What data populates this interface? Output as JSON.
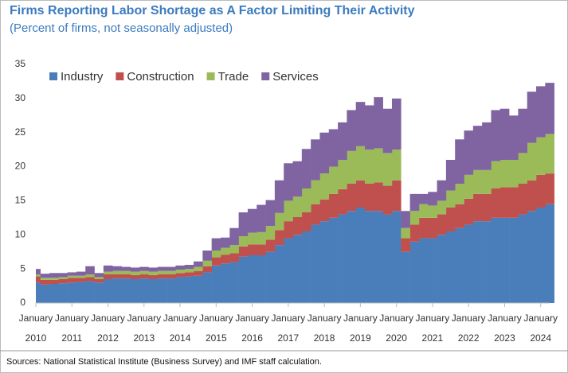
{
  "chart_data": {
    "type": "bar",
    "stacked": true,
    "title": "Firms Reporting Labor Shortage as A Factor Limiting Their Activity",
    "subtitle": "(Percent of firms, not seasonally adjusted)",
    "source": "Sources: National Statistical Institute (Business Survey) and IMF staff calculation.",
    "x_tick_month": "January",
    "categories": [
      "2010",
      null,
      null,
      null,
      "2011",
      null,
      null,
      null,
      "2012",
      null,
      null,
      null,
      "2013",
      null,
      null,
      null,
      "2014",
      null,
      null,
      null,
      "2015",
      null,
      null,
      null,
      "2016",
      null,
      null,
      null,
      "2017",
      null,
      null,
      null,
      "2018",
      null,
      null,
      null,
      "2019",
      null,
      null,
      null,
      "2020",
      null,
      null,
      null,
      "2021",
      null,
      null,
      null,
      "2022",
      null,
      null,
      null,
      "2023",
      null,
      null,
      null,
      "2024",
      null
    ],
    "ylim": [
      0,
      35
    ],
    "yticks": [
      0,
      5,
      10,
      15,
      20,
      25,
      30,
      35
    ],
    "grid": false,
    "legend": "top-left",
    "series": [
      {
        "name": "Industry",
        "color": "#4a7ebb",
        "values": [
          3.0,
          2.7,
          2.8,
          2.9,
          3.0,
          3.1,
          3.2,
          3.0,
          3.5,
          3.6,
          3.6,
          3.5,
          3.6,
          3.5,
          3.6,
          3.6,
          3.8,
          3.9,
          4.0,
          4.5,
          5.5,
          5.8,
          6.0,
          6.8,
          7.0,
          7.0,
          7.5,
          8.5,
          9.5,
          10.0,
          10.5,
          11.5,
          12.0,
          12.5,
          13.0,
          13.5,
          14.0,
          13.5,
          13.5,
          13.0,
          13.5,
          7.5,
          9.0,
          9.5,
          9.5,
          10.0,
          10.5,
          11.0,
          11.5,
          12.0,
          12.0,
          12.5,
          12.5,
          12.5,
          13.0,
          13.5,
          14.0,
          14.5
        ]
      },
      {
        "name": "Construction",
        "color": "#c0504d",
        "values": [
          0.9,
          0.7,
          0.6,
          0.6,
          0.7,
          0.6,
          0.6,
          0.5,
          0.7,
          0.6,
          0.6,
          0.6,
          0.6,
          0.6,
          0.6,
          0.6,
          0.6,
          0.6,
          0.7,
          0.9,
          1.2,
          1.3,
          1.3,
          1.5,
          1.6,
          1.6,
          1.8,
          2.2,
          2.5,
          2.6,
          2.8,
          3.0,
          3.2,
          3.5,
          3.7,
          4.0,
          4.0,
          4.0,
          4.2,
          4.2,
          4.5,
          2.0,
          2.5,
          3.0,
          3.0,
          3.0,
          3.5,
          3.5,
          3.8,
          4.0,
          4.0,
          4.3,
          4.5,
          4.5,
          4.5,
          4.5,
          4.8,
          4.5
        ]
      },
      {
        "name": "Trade",
        "color": "#9bbb59",
        "values": [
          0.3,
          0.3,
          0.3,
          0.3,
          0.3,
          0.3,
          0.4,
          0.3,
          0.4,
          0.5,
          0.5,
          0.5,
          0.5,
          0.5,
          0.5,
          0.5,
          0.5,
          0.5,
          0.6,
          0.8,
          1.0,
          1.0,
          1.2,
          1.5,
          1.7,
          1.8,
          2.0,
          2.5,
          3.0,
          3.0,
          3.5,
          3.5,
          3.8,
          4.0,
          4.3,
          4.8,
          5.0,
          5.0,
          5.0,
          4.8,
          4.5,
          1.5,
          2.0,
          2.0,
          1.8,
          2.0,
          2.5,
          3.0,
          3.5,
          3.5,
          3.5,
          4.0,
          4.0,
          4.0,
          4.5,
          5.5,
          5.5,
          5.8
        ]
      },
      {
        "name": "Services",
        "color": "#8064a2",
        "values": [
          0.8,
          0.6,
          0.7,
          0.6,
          0.5,
          0.6,
          1.2,
          0.6,
          0.9,
          0.7,
          0.6,
          0.6,
          0.6,
          0.6,
          0.6,
          0.6,
          0.6,
          0.6,
          0.8,
          1.5,
          1.8,
          1.5,
          2.5,
          3.5,
          3.5,
          4.0,
          3.8,
          4.8,
          5.5,
          5.2,
          5.8,
          6.0,
          6.0,
          5.5,
          5.5,
          6.0,
          6.5,
          6.5,
          7.5,
          6.5,
          7.5,
          2.5,
          2.5,
          1.5,
          2.0,
          3.0,
          4.5,
          6.5,
          6.5,
          6.5,
          7.0,
          7.5,
          7.5,
          6.5,
          6.5,
          7.5,
          7.5,
          7.5
        ]
      }
    ]
  }
}
